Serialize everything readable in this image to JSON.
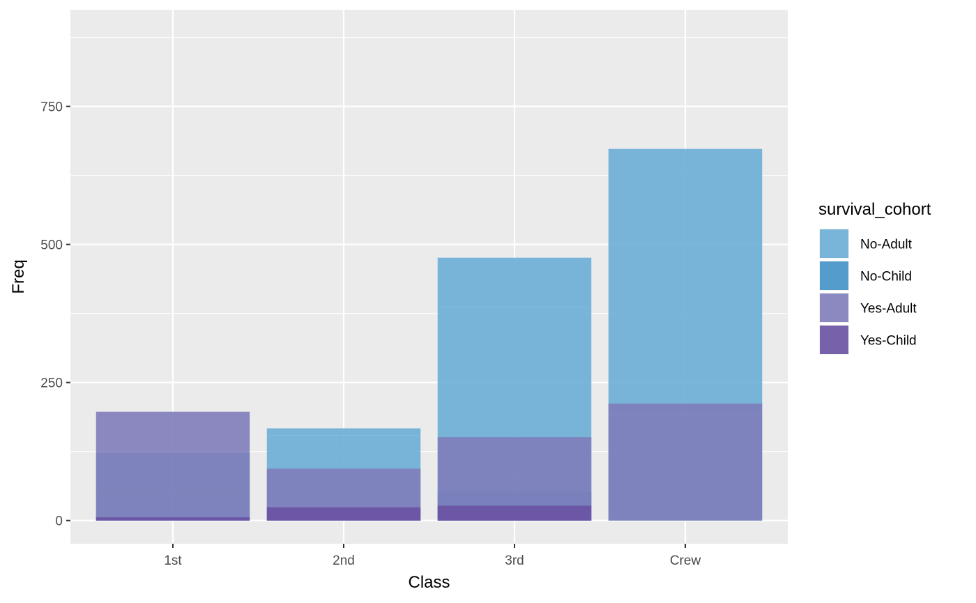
{
  "chart_data": {
    "type": "bar",
    "stacking": "overlaid (identity position), semi-transparent fill",
    "categories": [
      "1st",
      "2nd",
      "3rd",
      "Crew"
    ],
    "xlabel": "Class",
    "ylabel": "Freq",
    "ylim": [
      -42,
      925
    ],
    "yticks": [
      0,
      250,
      500,
      750
    ],
    "ytick_labels": [
      "0",
      "250",
      "500",
      "750"
    ],
    "grid": true,
    "legend": {
      "title": "survival_cohort",
      "position": "right"
    },
    "series": [
      {
        "name": "No-Adult",
        "color": "#6BAED6",
        "bars": [
          {
            "category": "1st",
            "values": [
              118,
              4
            ]
          },
          {
            "category": "2nd",
            "values": [
              154,
              13
            ]
          },
          {
            "category": "3rd",
            "values": [
              387,
              89
            ]
          },
          {
            "category": "Crew",
            "values": [
              670,
              3
            ]
          }
        ]
      },
      {
        "name": "No-Child",
        "color": "#4292C6",
        "bars": [
          {
            "category": "1st",
            "values": [
              0,
              0
            ]
          },
          {
            "category": "2nd",
            "values": [
              0,
              0
            ]
          },
          {
            "category": "3rd",
            "values": [
              35,
              17
            ]
          },
          {
            "category": "Crew",
            "values": [
              0,
              0
            ]
          }
        ]
      },
      {
        "name": "Yes-Adult",
        "color": "#807DBA",
        "bars": [
          {
            "category": "1st",
            "values": [
              57,
              140
            ]
          },
          {
            "category": "2nd",
            "values": [
              14,
              80
            ]
          },
          {
            "category": "3rd",
            "values": [
              75,
              76
            ]
          },
          {
            "category": "Crew",
            "values": [
              192,
              20
            ]
          }
        ]
      },
      {
        "name": "Yes-Child",
        "color": "#6A51A3",
        "bars": [
          {
            "category": "1st",
            "values": [
              5,
              1
            ]
          },
          {
            "category": "2nd",
            "values": [
              11,
              13
            ]
          },
          {
            "category": "3rd",
            "values": [
              13,
              14
            ]
          },
          {
            "category": "Crew",
            "values": [
              0,
              0
            ]
          }
        ]
      }
    ]
  }
}
